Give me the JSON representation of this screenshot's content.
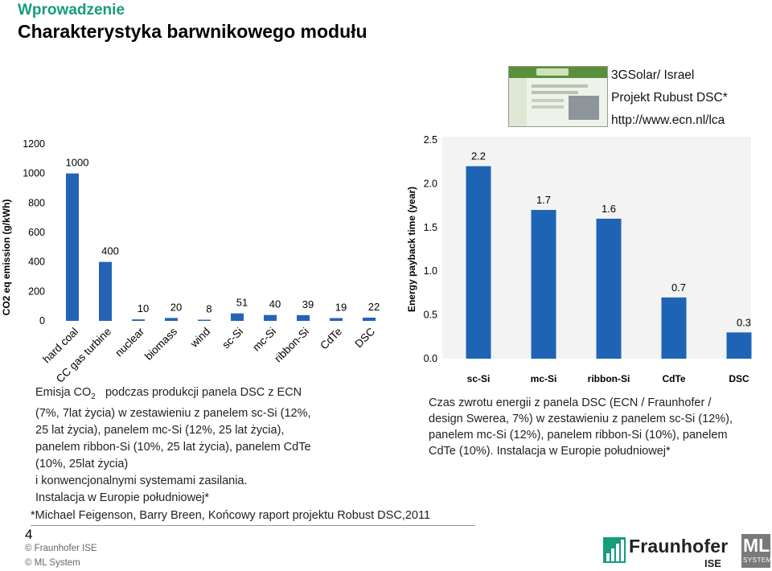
{
  "header": {
    "subtitle": "Wprowadzenie",
    "title": "Charakterystyka barwnikowego modułu"
  },
  "source": {
    "line1": "3GSolar/ Israel",
    "line2": "Projekt Rubust DSC*",
    "line3": "http://www.ecn.nl/lca"
  },
  "chart_data": [
    {
      "type": "bar",
      "ylabel": "CO2 eq emission (g/kWh)",
      "ylim": [
        0,
        1200
      ],
      "yticks": [
        "0",
        "200",
        "400",
        "600",
        "800",
        "1000",
        "1200"
      ],
      "categories": [
        "hard coal",
        "CC gas turbine",
        "nuclear",
        "biomass",
        "wind",
        "sc-Si",
        "mc-Si",
        "ribbon-Si",
        "CdTe",
        "DSC"
      ],
      "values": [
        1000,
        400,
        10,
        20,
        8,
        51,
        40,
        39,
        19,
        22
      ],
      "value_labels": [
        "1000",
        "400",
        "10",
        "20",
        "8",
        "51",
        "40",
        "39",
        "19",
        "22"
      ],
      "bar_color": "#2563b8",
      "grid": false
    },
    {
      "type": "bar",
      "ylabel": "Energy payback time (year)",
      "ylim": [
        0,
        2.5
      ],
      "yticks": [
        "0.0",
        "0.5",
        "1.0",
        "1.5",
        "2.0",
        "2.5"
      ],
      "categories": [
        "sc-Si",
        "mc-Si",
        "ribbon-Si",
        "CdTe",
        "DSC"
      ],
      "values": [
        2.2,
        1.7,
        1.6,
        0.7,
        0.3
      ],
      "value_labels": [
        "2.2",
        "1.7",
        "1.6",
        "0.7",
        "0.3"
      ],
      "bar_color": "#1f64b4",
      "plot_bg": "#f3f3f3",
      "grid": false
    }
  ],
  "captions": {
    "left": {
      "lines": [
        "podczas produkcji  panela DSC z ECN",
        "(7%, 7lat życia)  w zestawieniu z panelem sc-Si (12%,",
        "25 lat życia), panelem mc-Si (12%, 25 lat życia),",
        "panelem ribbon-Si (10%, 25 lat życia),  panelem CdTe",
        "(10%, 25lat życia)",
        "i konwencjonalnymi systemami zasilania.",
        "Instalacja w Europie południowej*"
      ],
      "prefix": "Emisja CO",
      "prefix_sub": "2"
    },
    "right": {
      "lines": [
        "Czas zwrotu energii z panela DSC (ECN / Fraunhofer /",
        "design Swerea, 7%) w zestawieniu z panelem sc-Si (12%),",
        "panelem mc-Si (12%), panelem ribbon-Si (10%), panelem",
        "CdTe (10%). Instalacja w Europie południowej*"
      ]
    }
  },
  "footer": {
    "footnote": "*Michael Feigenson, Barry Breen, Końcowy raport projektu Robust DSC,2011",
    "page_number": "4",
    "copyright_1": "© Fraunhofer ISE",
    "copyright_2": "© ML System",
    "fraunhofer_name": "Fraunhofer",
    "fraunhofer_unit": "ISE",
    "ml_name": "ML",
    "ml_sub": "SYSTEM"
  }
}
